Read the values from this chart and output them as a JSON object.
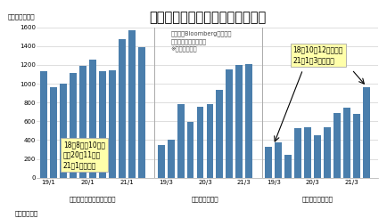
{
  "title": "製造設備大手の中国向け売上推移",
  "ylabel": "（百万米ドル）",
  "xlabel_bottom": "（各四半期）",
  "bar_color": "#4a7eac",
  "background_color": "#ffffff",
  "ylim": [
    0,
    1600
  ],
  "yticks": [
    0,
    200,
    400,
    600,
    800,
    1000,
    1200,
    1400,
    1600
  ],
  "company0_name": "アプライド・マテリアルズ",
  "company0_values": [
    1135,
    960,
    1000,
    1110,
    1190,
    1260,
    1130,
    1140,
    1470,
    1565,
    1390
  ],
  "company0_positions": [
    0,
    1,
    2,
    3,
    4,
    5,
    6,
    7,
    8,
    9,
    10
  ],
  "company0_period_ticks": [
    [
      0.5,
      "19/1"
    ],
    [
      4.5,
      "20/1"
    ],
    [
      8.5,
      "21/1"
    ]
  ],
  "company1_name": "ラム・リサーチ",
  "company1_values": [
    350,
    400,
    780,
    595,
    755,
    780,
    935,
    1155,
    1200,
    1210
  ],
  "company1_positions": [
    12,
    13,
    14,
    15,
    16,
    17,
    18,
    19,
    20,
    21
  ],
  "company1_period_ticks": [
    [
      12.5,
      "19/3"
    ],
    [
      16.5,
      "20/3"
    ],
    [
      20.5,
      "21/3"
    ]
  ],
  "company2_name": "東京エレクトロン",
  "company2_values": [
    330,
    380,
    240,
    525,
    540,
    455,
    535,
    690,
    740,
    680,
    960
  ],
  "company2_positions": [
    23,
    24,
    25,
    26,
    27,
    28,
    29,
    30,
    31,
    32,
    33
  ],
  "company2_period_ticks": [
    [
      23.5,
      "19/3"
    ],
    [
      27.5,
      "20/3"
    ],
    [
      31.5,
      "21/3"
    ]
  ],
  "source_text": "（出所）Bloombergのデータ\nをもとに東洋証券作成\n※四半期ベース",
  "ann1_text": "18年8月～10月期\nから20年11月～\n21年1月期まで",
  "ann2_text": "18年10～12月期から\n21年1～3月期まで",
  "sep_color": "#aaaaaa",
  "grid_color": "#d0d0d0",
  "title_fontsize": 10.5,
  "label_fontsize": 5.2,
  "tick_fontsize": 5.0,
  "ann_fontsize": 5.5,
  "source_fontsize": 4.8
}
